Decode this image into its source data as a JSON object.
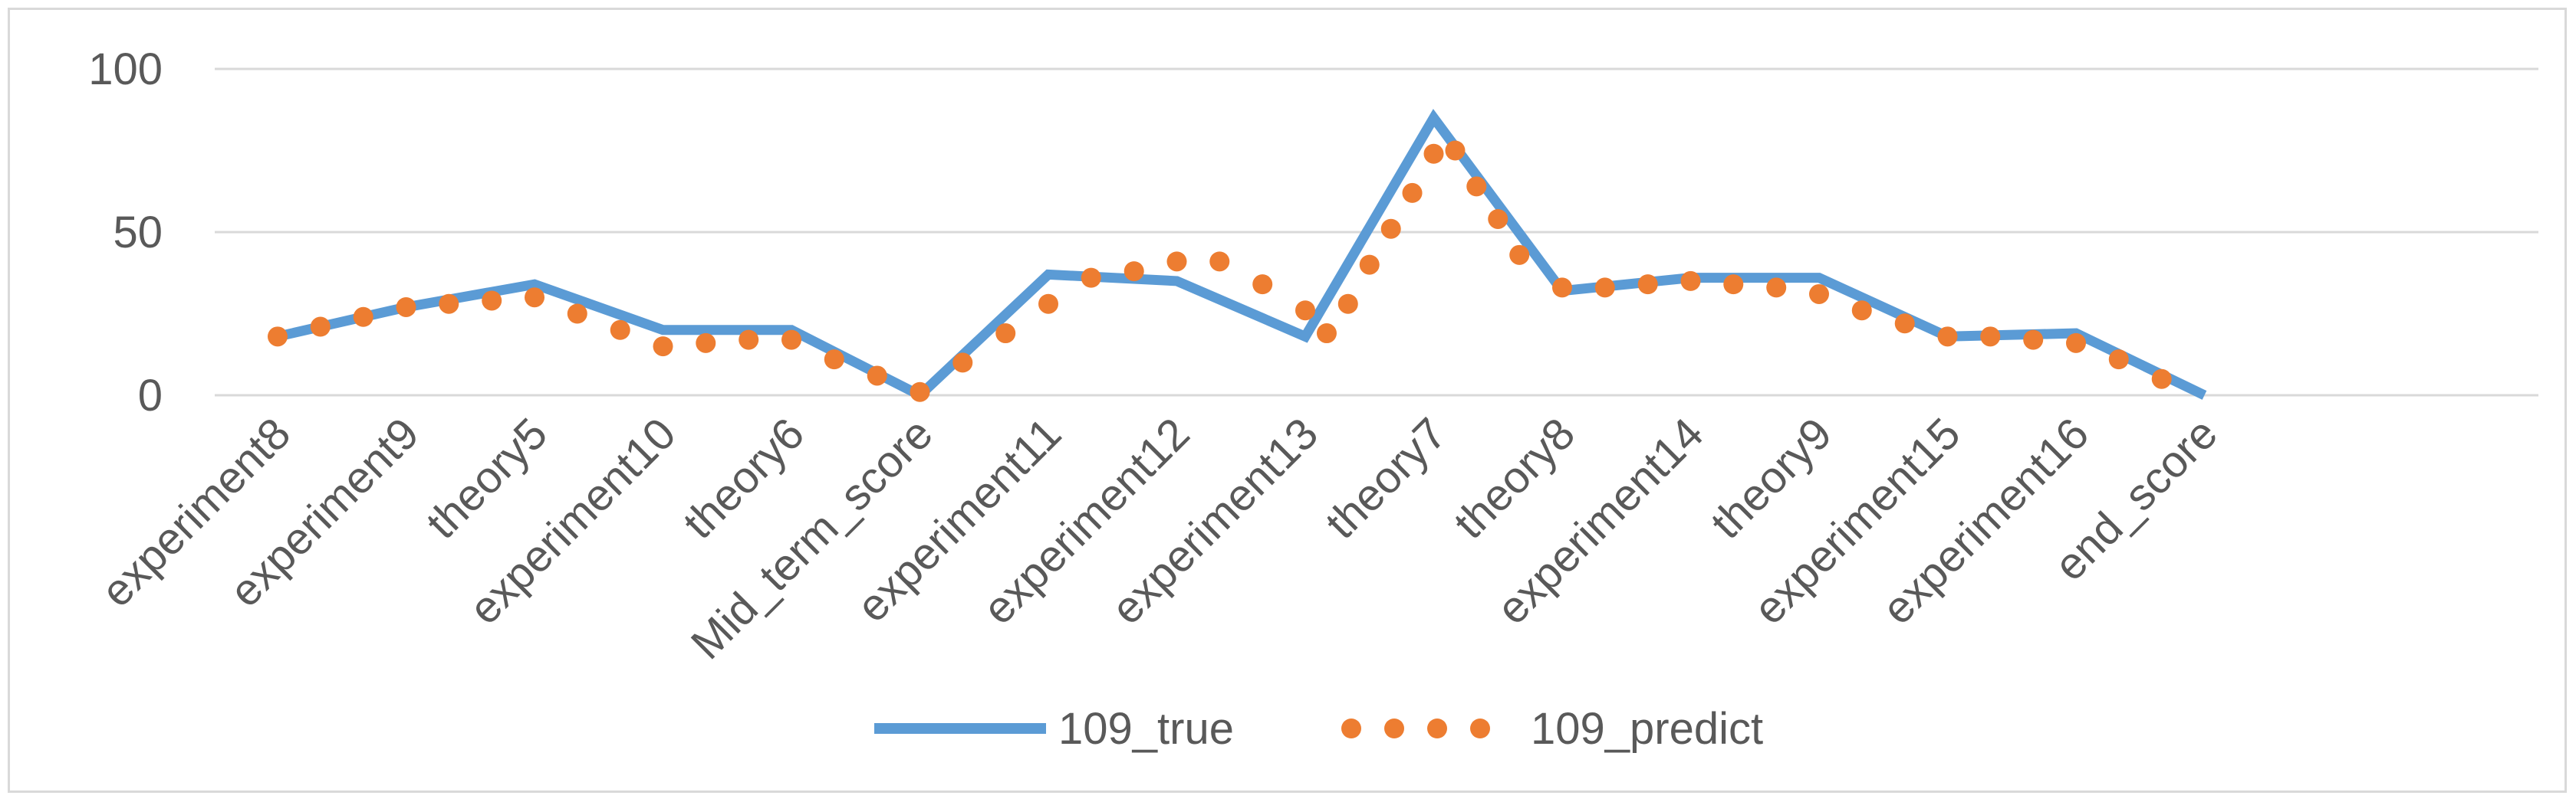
{
  "chart_data": {
    "type": "line",
    "title": "",
    "xlabel": "",
    "ylabel": "",
    "ylim": [
      0,
      100
    ],
    "yticks": [
      0,
      50,
      100
    ],
    "grid": true,
    "legend_position": "bottom",
    "categories": [
      "experiment8",
      "experiment9",
      "theory5",
      "experiment10",
      "theory6",
      "Mid_term_score",
      "experiment11",
      "experiment12",
      "experiment13",
      "theory7",
      "theory8",
      "experiment14",
      "theory9",
      "experiment15",
      "experiment16",
      "end_score"
    ],
    "series": [
      {
        "name": "109_true",
        "style": "solid",
        "color": "#5b9bd5",
        "x": [
          0,
          1,
          2,
          3,
          4,
          5,
          6,
          7,
          8,
          9,
          10,
          11,
          12,
          13,
          14,
          15
        ],
        "values": [
          18,
          27,
          34,
          20,
          20,
          0,
          37,
          35,
          18,
          85,
          32,
          36,
          36,
          18,
          19,
          0
        ]
      },
      {
        "name": "109_predict",
        "style": "dotted",
        "color": "#ed7d31",
        "x": [
          0,
          0.333,
          0.667,
          1,
          1.333,
          1.667,
          2,
          2.333,
          2.667,
          3,
          3.333,
          3.667,
          4,
          4.333,
          4.667,
          5,
          5.333,
          5.667,
          6,
          6.333,
          6.667,
          7,
          7.333,
          7.667,
          8,
          8.167,
          8.333,
          8.5,
          8.667,
          8.833,
          9,
          9.167,
          9.333,
          9.5,
          9.667,
          10,
          10.333,
          10.667,
          11,
          11.333,
          11.667,
          12,
          12.333,
          12.667,
          13,
          13.333,
          13.667,
          14,
          14.333,
          14.667
        ],
        "values": [
          18,
          21,
          24,
          27,
          28,
          29,
          30,
          25,
          20,
          15,
          16,
          17,
          17,
          11,
          6,
          1,
          10,
          19,
          28,
          36,
          38,
          41,
          41,
          34,
          26,
          19,
          28,
          40,
          51,
          62,
          74,
          75,
          64,
          54,
          43,
          33,
          33,
          34,
          35,
          34,
          33,
          31,
          26,
          22,
          18,
          18,
          17,
          16,
          11,
          5
        ]
      }
    ]
  }
}
